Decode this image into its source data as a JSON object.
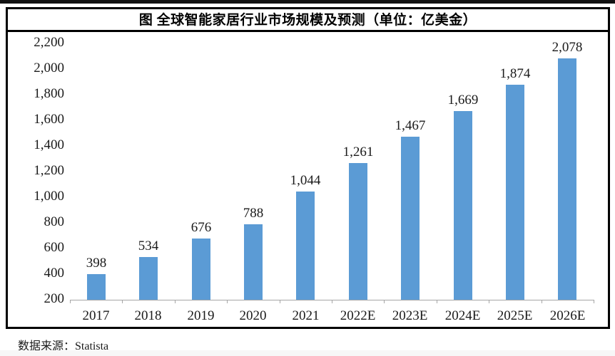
{
  "page": {
    "source_label": "数据来源：Statista"
  },
  "chart_data": {
    "type": "bar",
    "title": "图 全球智能家居行业市场规模及预测（单位：亿美金）",
    "unit": "亿美金",
    "source": "Statista",
    "categories": [
      "2017",
      "2018",
      "2019",
      "2020",
      "2021",
      "2022E",
      "2023E",
      "2024E",
      "2025E",
      "2026E"
    ],
    "values": [
      398,
      534,
      676,
      788,
      1044,
      1261,
      1467,
      1669,
      1874,
      2078
    ],
    "value_labels": [
      "398",
      "534",
      "676",
      "788",
      "1,044",
      "1,261",
      "1,467",
      "1,669",
      "1,874",
      "2,078"
    ],
    "y_ticks": [
      "2,200",
      "2,000",
      "1,800",
      "1,600",
      "1,400",
      "1,200",
      "1,000",
      "800",
      "600",
      "400",
      "200"
    ],
    "ylim": [
      200,
      2200
    ],
    "xlabel": "",
    "ylabel": "",
    "grid": false,
    "legend_position": "none",
    "bar_color": "#5B9BD5",
    "axis_color": "#a6a6a6"
  }
}
